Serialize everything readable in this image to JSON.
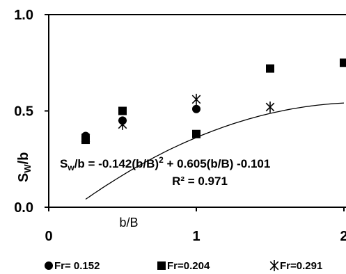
{
  "chart_data": {
    "type": "scatter",
    "xlabel": "b/B",
    "ylabel_main": "S",
    "ylabel_sub": "W",
    "ylabel_tail": "/b",
    "xlim": [
      0,
      2
    ],
    "ylim": [
      0,
      1.0
    ],
    "x_ticks": [
      {
        "value": 0,
        "label": "0"
      },
      {
        "value": 1,
        "label": "1"
      },
      {
        "value": 2,
        "label": "2"
      }
    ],
    "y_ticks": [
      {
        "value": 0,
        "label": "0.0"
      },
      {
        "value": 0.5,
        "label": "0.5"
      },
      {
        "value": 1,
        "label": "1.0"
      }
    ],
    "grid": false,
    "legend_position": "bottom",
    "series": [
      {
        "name": "Fr= 0.152",
        "marker": "circle",
        "points": [
          {
            "x": 0.25,
            "y": 0.37
          },
          {
            "x": 0.5,
            "y": 0.45
          },
          {
            "x": 1.0,
            "y": 0.51
          }
        ]
      },
      {
        "name": "Fr=0.204",
        "marker": "square",
        "points": [
          {
            "x": 0.25,
            "y": 0.35
          },
          {
            "x": 0.5,
            "y": 0.5
          },
          {
            "x": 1.0,
            "y": 0.38
          },
          {
            "x": 1.5,
            "y": 0.72
          },
          {
            "x": 2.0,
            "y": 0.75
          }
        ]
      },
      {
        "name": "Fr=0.291",
        "marker": "asterisk",
        "points": [
          {
            "x": 0.25,
            "y": 0.36
          },
          {
            "x": 0.5,
            "y": 0.43
          },
          {
            "x": 1.0,
            "y": 0.56
          },
          {
            "x": 1.5,
            "y": 0.52
          }
        ]
      }
    ],
    "trendline": {
      "a": -0.142,
      "b": 0.605,
      "c": -0.101,
      "x_from": 0.25,
      "x_to": 2.0
    },
    "equation": {
      "s": "S",
      "sub": "w",
      "before_sup": "/b = -0.142(b/B)",
      "sup": "2",
      "after_sup": " + 0.605(b/B) -0.101"
    },
    "r_squared_label": "R² = 0.971"
  }
}
